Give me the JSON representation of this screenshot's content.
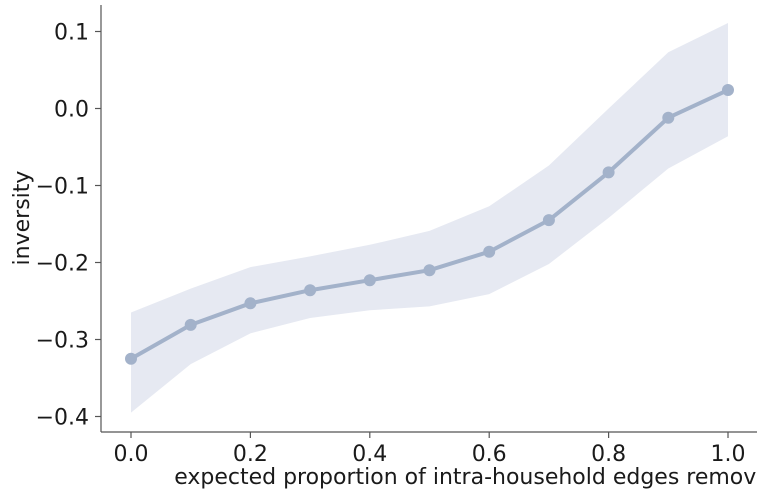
{
  "chart_data": {
    "type": "line",
    "title": "",
    "xlabel": "expected proportion of intra-household edges removed",
    "ylabel": "inversity",
    "xlim": [
      -0.05,
      1.05
    ],
    "ylim": [
      -0.42,
      0.135
    ],
    "xticks": [
      0.0,
      0.2,
      0.4,
      0.6,
      0.8,
      1.0
    ],
    "xtick_labels": [
      "0.0",
      "0.2",
      "0.4",
      "0.6",
      "0.8",
      "1.0"
    ],
    "yticks": [
      0.1,
      0.0,
      -0.1,
      -0.2,
      -0.3,
      -0.4
    ],
    "ytick_labels": [
      "0.1",
      "0.0",
      "−0.1",
      "−0.2",
      "−0.3",
      "−0.4"
    ],
    "grid": false,
    "legend": "none",
    "series": [
      {
        "x": [
          0.0,
          0.1,
          0.2,
          0.3,
          0.4,
          0.5,
          0.6,
          0.7,
          0.8,
          0.9,
          1.0
        ],
        "values": [
          -0.325,
          -0.281,
          -0.253,
          -0.236,
          -0.223,
          -0.21,
          -0.186,
          -0.145,
          -0.083,
          -0.012,
          0.024
        ],
        "band_upper": [
          -0.265,
          -0.234,
          -0.206,
          -0.192,
          -0.177,
          -0.159,
          -0.127,
          -0.074,
          0.0,
          0.073,
          0.111
        ],
        "band_lower": [
          -0.395,
          -0.332,
          -0.292,
          -0.272,
          -0.262,
          -0.257,
          -0.241,
          -0.202,
          -0.142,
          -0.078,
          -0.036
        ],
        "color": "#a3b2ca",
        "band_color": "#e6e9f2"
      }
    ],
    "axis_color": "#555555"
  }
}
